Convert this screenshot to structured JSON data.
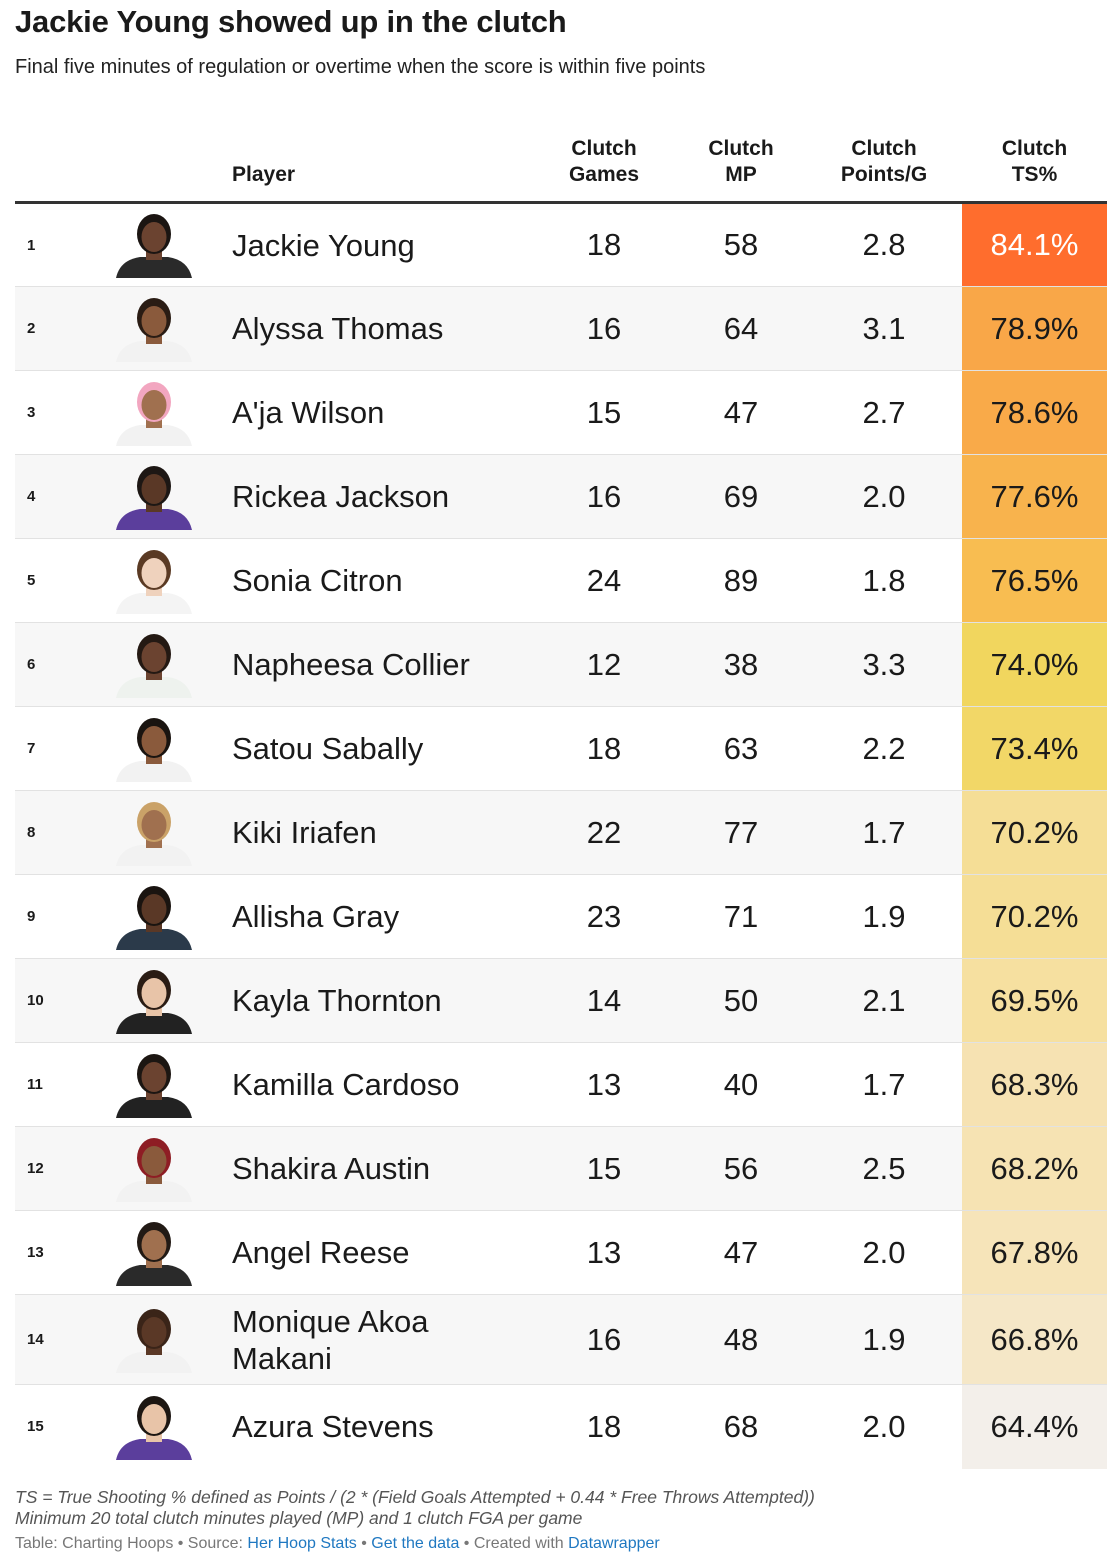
{
  "title": "Jackie Young showed up in the clutch",
  "subtitle": "Final five minutes of regulation or overtime when the score is within five points",
  "chart_data": {
    "type": "table",
    "columns": [
      {
        "key": "rank",
        "label": ""
      },
      {
        "key": "photo",
        "label": ""
      },
      {
        "key": "player",
        "label": "Player"
      },
      {
        "key": "games",
        "label": "Clutch\nGames",
        "line1": "Clutch",
        "line2": "Games"
      },
      {
        "key": "mp",
        "label": "Clutch\nMP",
        "line1": "Clutch",
        "line2": "MP"
      },
      {
        "key": "ppg",
        "label": "Clutch\nPoints/G",
        "line1": "Clutch",
        "line2": "Points/G"
      },
      {
        "key": "ts",
        "label": "Clutch\nTS%",
        "line1": "Clutch",
        "line2": "TS%"
      }
    ],
    "rows": [
      {
        "rank": "1",
        "player": "Jackie Young",
        "games": "18",
        "mp": "58",
        "ppg": "2.8",
        "ts": "84.1%",
        "ts_value": 84.1
      },
      {
        "rank": "2",
        "player": "Alyssa Thomas",
        "games": "16",
        "mp": "64",
        "ppg": "3.1",
        "ts": "78.9%",
        "ts_value": 78.9
      },
      {
        "rank": "3",
        "player": "A'ja Wilson",
        "games": "15",
        "mp": "47",
        "ppg": "2.7",
        "ts": "78.6%",
        "ts_value": 78.6
      },
      {
        "rank": "4",
        "player": "Rickea Jackson",
        "games": "16",
        "mp": "69",
        "ppg": "2.0",
        "ts": "77.6%",
        "ts_value": 77.6
      },
      {
        "rank": "5",
        "player": "Sonia Citron",
        "games": "24",
        "mp": "89",
        "ppg": "1.8",
        "ts": "76.5%",
        "ts_value": 76.5
      },
      {
        "rank": "6",
        "player": "Napheesa Collier",
        "games": "12",
        "mp": "38",
        "ppg": "3.3",
        "ts": "74.0%",
        "ts_value": 74.0
      },
      {
        "rank": "7",
        "player": "Satou Sabally",
        "games": "18",
        "mp": "63",
        "ppg": "2.2",
        "ts": "73.4%",
        "ts_value": 73.4
      },
      {
        "rank": "8",
        "player": "Kiki Iriafen",
        "games": "22",
        "mp": "77",
        "ppg": "1.7",
        "ts": "70.2%",
        "ts_value": 70.2
      },
      {
        "rank": "9",
        "player": "Allisha Gray",
        "games": "23",
        "mp": "71",
        "ppg": "1.9",
        "ts": "70.2%",
        "ts_value": 70.2
      },
      {
        "rank": "10",
        "player": "Kayla Thornton",
        "games": "14",
        "mp": "50",
        "ppg": "2.1",
        "ts": "69.5%",
        "ts_value": 69.5
      },
      {
        "rank": "11",
        "player": "Kamilla Cardoso",
        "games": "13",
        "mp": "40",
        "ppg": "1.7",
        "ts": "68.3%",
        "ts_value": 68.3
      },
      {
        "rank": "12",
        "player": "Shakira Austin",
        "games": "15",
        "mp": "56",
        "ppg": "2.5",
        "ts": "68.2%",
        "ts_value": 68.2
      },
      {
        "rank": "13",
        "player": "Angel Reese",
        "games": "13",
        "mp": "47",
        "ppg": "2.0",
        "ts": "67.8%",
        "ts_value": 67.8
      },
      {
        "rank": "14",
        "player": "Monique Akoa Makani",
        "player_line1": "Monique Akoa",
        "player_line2": "Makani",
        "games": "16",
        "mp": "48",
        "ppg": "1.9",
        "ts": "66.8%",
        "ts_value": 66.8
      },
      {
        "rank": "15",
        "player": "Azura Stevens",
        "games": "18",
        "mp": "68",
        "ppg": "2.0",
        "ts": "64.4%",
        "ts_value": 64.4
      }
    ],
    "ts_color_scale": {
      "stops": [
        {
          "value": 64.4,
          "color": "#f3efea"
        },
        {
          "value": 68.0,
          "color": "#f6e3b6"
        },
        {
          "value": 71.0,
          "color": "#f5dc8a"
        },
        {
          "value": 74.0,
          "color": "#f1d65e"
        },
        {
          "value": 76.5,
          "color": "#f8bd51"
        },
        {
          "value": 78.9,
          "color": "#f9a748"
        },
        {
          "value": 84.1,
          "color": "#ff6d2d"
        }
      ],
      "light_text_above": 82
    }
  },
  "footnote": {
    "line1": "TS = True Shooting % defined as Points / (2 * (Field Goals Attempted + 0.44 * Free Throws Attempted))",
    "line2": "Minimum 20 total clutch minutes played (MP) and 1 clutch FGA per game"
  },
  "source": {
    "prefix": "Table: Charting Hoops • Source: ",
    "source_link": "Her Hoop Stats",
    "sep1": " • ",
    "data_link": "Get the data",
    "sep2": " • Created with ",
    "tool_link": "Datawrapper"
  },
  "colors": {
    "link": "#1f78c1",
    "stripe": "#f7f7f7",
    "header_rule": "#333333"
  },
  "icons": {
    "photo": "player-headshot-icon"
  }
}
